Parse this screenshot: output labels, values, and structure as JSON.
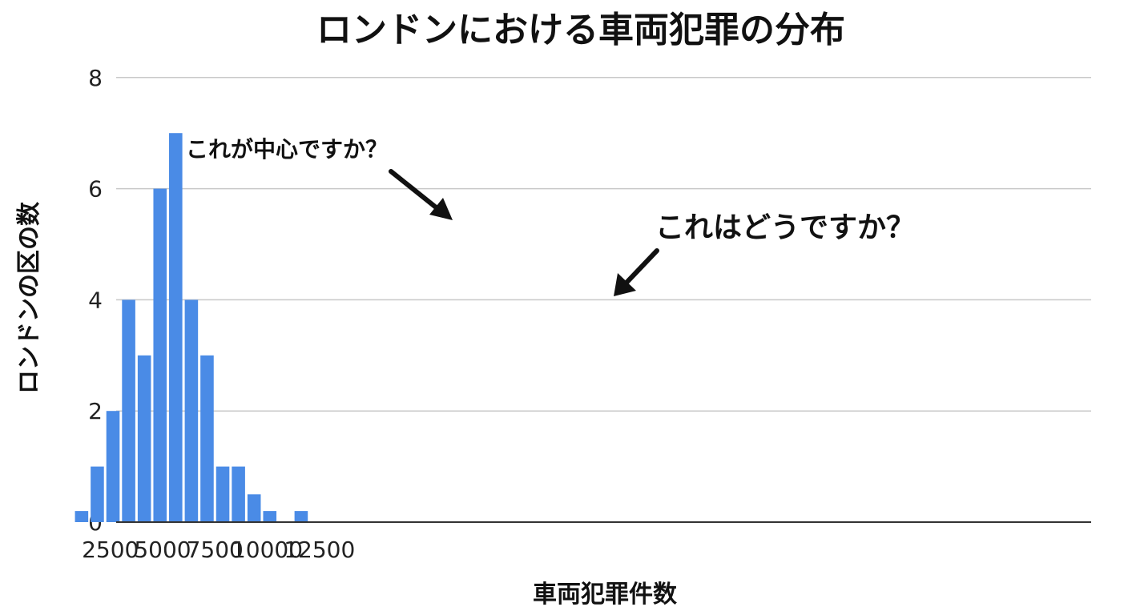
{
  "chart_data": {
    "type": "bar",
    "title": "ロンドンにおける車両犯罪の分布",
    "xlabel": "車両犯罪件数",
    "ylabel": "ロンドンの区の数",
    "xlim": [
      0,
      12500
    ],
    "ylim": [
      0,
      8
    ],
    "x_ticks": [
      2500,
      5000,
      7500,
      10000,
      12500
    ],
    "y_ticks": [
      0,
      2,
      4,
      6,
      8
    ],
    "grid": true,
    "bar_color": "#4a8be6",
    "bins": [
      {
        "start": 750,
        "end": 1500,
        "value": 0.2
      },
      {
        "start": 1500,
        "end": 2250,
        "value": 1
      },
      {
        "start": 2250,
        "end": 3000,
        "value": 2
      },
      {
        "start": 3000,
        "end": 3750,
        "value": 4
      },
      {
        "start": 3750,
        "end": 4500,
        "value": 3
      },
      {
        "start": 4500,
        "end": 5250,
        "value": 6
      },
      {
        "start": 5250,
        "end": 6000,
        "value": 7
      },
      {
        "start": 6000,
        "end": 6750,
        "value": 4
      },
      {
        "start": 6750,
        "end": 7500,
        "value": 3
      },
      {
        "start": 7500,
        "end": 8250,
        "value": 1
      },
      {
        "start": 8250,
        "end": 9000,
        "value": 1
      },
      {
        "start": 9000,
        "end": 9750,
        "value": 0.5
      },
      {
        "start": 9750,
        "end": 10500,
        "value": 0.2
      },
      {
        "start": 11250,
        "end": 12000,
        "value": 0.2
      }
    ],
    "annotations": [
      {
        "text": "これが中心ですか？",
        "target_bin": 5
      },
      {
        "text": "これはどうですか？",
        "target_bin": 7
      }
    ]
  }
}
